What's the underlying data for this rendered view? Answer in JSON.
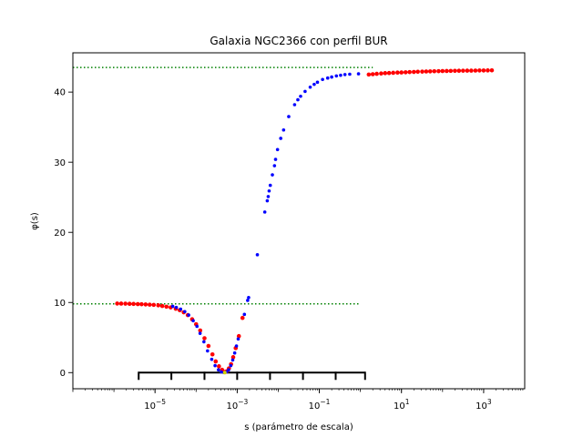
{
  "chart_data": {
    "type": "scatter",
    "title": "Galaxia NGC2366 con perfil BUR",
    "xlabel": "s (parámetro de escala)",
    "ylabel": "φ(s)",
    "xscale": "log",
    "xlim": [
      1e-07,
      10000
    ],
    "ylim": [
      -2.3,
      45.6
    ],
    "grid": false,
    "xticks": [
      {
        "value": 1e-05,
        "base": "10",
        "exp": "−5"
      },
      {
        "value": 0.001,
        "base": "10",
        "exp": "−3"
      },
      {
        "value": 0.1,
        "base": "10",
        "exp": "−1"
      },
      {
        "value": 10,
        "base": "10",
        "exp": "1"
      },
      {
        "value": 1000,
        "base": "10",
        "exp": "3"
      }
    ],
    "yticks": [
      0,
      10,
      20,
      30,
      40
    ],
    "hlines": [
      {
        "y": 43.5,
        "x": [
          1e-07,
          2
        ],
        "color": "#008000",
        "style": "dotted"
      },
      {
        "y": 9.8,
        "x": [
          1e-07,
          1
        ],
        "color": "#008000",
        "style": "dotted"
      }
    ],
    "bracket": {
      "y": 0,
      "ticks": [
        4e-06,
        2.5e-05,
        0.00016,
        0.001,
        0.0063,
        0.04,
        0.25,
        1.3
      ]
    },
    "series": [
      {
        "color": "#ff0000",
        "size": 2.3,
        "points": [
          [
            1.2e-06,
            9.85
          ],
          [
            1.5e-06,
            9.84
          ],
          [
            1.9e-06,
            9.83
          ],
          [
            2.4e-06,
            9.81
          ],
          [
            3e-06,
            9.79
          ],
          [
            3.8e-06,
            9.77
          ],
          [
            4.7e-06,
            9.75
          ],
          [
            5.9e-06,
            9.72
          ],
          [
            7.4e-06,
            9.69
          ],
          [
            9.3e-06,
            9.66
          ],
          [
            1.2e-05,
            9.6
          ],
          [
            1.5e-05,
            9.5
          ],
          [
            1.9e-05,
            9.4
          ],
          [
            2.4e-05,
            9.3
          ],
          [
            3.2e-05,
            9.1
          ],
          [
            4e-05,
            8.9
          ],
          [
            5e-05,
            8.6
          ],
          [
            6.3e-05,
            8.2
          ],
          [
            8e-05,
            7.6
          ],
          [
            0.0001,
            6.9
          ],
          [
            0.000126,
            6.0
          ],
          [
            0.00016,
            4.9
          ],
          [
            0.0002,
            3.8
          ],
          [
            0.00025,
            2.6
          ],
          [
            0.0003,
            1.6
          ],
          [
            0.00036,
            0.9
          ],
          [
            0.00043,
            0.4
          ],
          [
            0.0005,
            0.1
          ],
          [
            0.00056,
            0.2
          ],
          [
            0.00063,
            0.6
          ],
          [
            0.00071,
            1.2
          ],
          [
            0.0008,
            2.2
          ],
          [
            0.00092,
            3.5
          ],
          [
            0.0011,
            5.2
          ],
          [
            0.00135,
            7.8
          ],
          [
            1.6,
            42.5
          ],
          [
            2.0,
            42.55
          ],
          [
            2.5,
            42.6
          ],
          [
            3.2,
            42.65
          ],
          [
            4.0,
            42.7
          ],
          [
            5.0,
            42.72
          ],
          [
            6.3,
            42.75
          ],
          [
            8.0,
            42.78
          ],
          [
            10,
            42.8
          ],
          [
            12.6,
            42.82
          ],
          [
            15.8,
            42.85
          ],
          [
            20,
            42.87
          ],
          [
            25,
            42.9
          ],
          [
            32,
            42.92
          ],
          [
            40,
            42.94
          ],
          [
            50,
            42.95
          ],
          [
            63,
            42.97
          ],
          [
            80,
            42.98
          ],
          [
            100,
            43.0
          ],
          [
            126,
            43.01
          ],
          [
            158,
            43.02
          ],
          [
            200,
            43.03
          ],
          [
            251,
            43.04
          ],
          [
            316,
            43.05
          ],
          [
            398,
            43.06
          ],
          [
            500,
            43.06
          ],
          [
            631,
            43.07
          ],
          [
            794,
            43.08
          ],
          [
            1000,
            43.08
          ],
          [
            1259,
            43.09
          ],
          [
            1585,
            43.1
          ]
        ]
      },
      {
        "color": "#0000ff",
        "size": 1.8,
        "points": [
          [
            2.7e-05,
            9.45
          ],
          [
            3.3e-05,
            9.3
          ],
          [
            4.2e-05,
            9.05
          ],
          [
            5.3e-05,
            8.7
          ],
          [
            6.6e-05,
            8.2
          ],
          [
            8.5e-05,
            7.4
          ],
          [
            0.000105,
            6.6
          ],
          [
            0.000125,
            5.6
          ],
          [
            0.000155,
            4.4
          ],
          [
            0.00019,
            3.1
          ],
          [
            0.00024,
            1.9
          ],
          [
            0.00029,
            1.0
          ],
          [
            0.00035,
            0.4
          ],
          [
            0.00041,
            0.1
          ],
          [
            0.00048,
            0.0
          ],
          [
            0.00055,
            0.1
          ],
          [
            0.00062,
            0.4
          ],
          [
            0.0007,
            1.0
          ],
          [
            0.00078,
            1.8
          ],
          [
            0.00087,
            2.8
          ],
          [
            0.00096,
            3.8
          ],
          [
            0.00106,
            4.8
          ],
          [
            0.0015,
            8.3
          ],
          [
            0.0018,
            10.3
          ],
          [
            0.0019,
            10.7
          ],
          [
            0.0031,
            16.8
          ],
          [
            0.0047,
            22.9
          ],
          [
            0.0054,
            24.5
          ],
          [
            0.0057,
            25.1
          ],
          [
            0.006,
            25.9
          ],
          [
            0.0064,
            26.7
          ],
          [
            0.0072,
            28.2
          ],
          [
            0.0081,
            29.5
          ],
          [
            0.0086,
            30.4
          ],
          [
            0.0096,
            31.8
          ],
          [
            0.0115,
            33.4
          ],
          [
            0.0135,
            34.6
          ],
          [
            0.018,
            36.5
          ],
          [
            0.025,
            38.2
          ],
          [
            0.03,
            38.9
          ],
          [
            0.035,
            39.4
          ],
          [
            0.045,
            40.1
          ],
          [
            0.06,
            40.7
          ],
          [
            0.075,
            41.1
          ],
          [
            0.09,
            41.4
          ],
          [
            0.12,
            41.8
          ],
          [
            0.16,
            42.0
          ],
          [
            0.2,
            42.15
          ],
          [
            0.26,
            42.3
          ],
          [
            0.33,
            42.4
          ],
          [
            0.42,
            42.5
          ],
          [
            0.55,
            42.55
          ],
          [
            0.9,
            42.6
          ]
        ]
      },
      {
        "color": "#d4d400",
        "size": 2.0,
        "points": [
          [
            0.0005,
            0.0
          ]
        ]
      }
    ]
  }
}
